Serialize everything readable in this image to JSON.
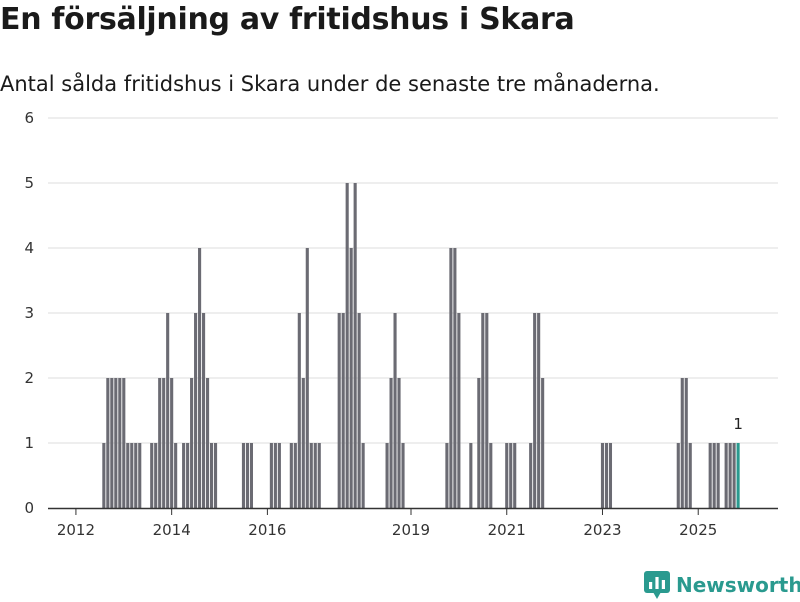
{
  "header": {
    "title": "En försäljning av fritidshus i Skara",
    "subtitle": "Antal sålda fritidshus i Skara under de senaste tre månaderna."
  },
  "brand": {
    "name": "Newsworthy",
    "icon": "bar-chart-icon",
    "color": "#2a9a8f"
  },
  "chart_data": {
    "type": "bar",
    "title": "En försäljning av fritidshus i Skara",
    "subtitle": "Antal sålda fritidshus i Skara under de senaste tre månaderna.",
    "xlabel": "",
    "ylabel": "",
    "ylim": [
      0,
      6
    ],
    "yticks": [
      0,
      1,
      2,
      3,
      4,
      5,
      6
    ],
    "grid": true,
    "frequency": "monthly",
    "xlim": [
      "2011-06",
      "2026-09"
    ],
    "xticks": [
      {
        "label": "2012",
        "month": "2012-01"
      },
      {
        "label": "2014",
        "month": "2014-01"
      },
      {
        "label": "2016",
        "month": "2016-01"
      },
      {
        "label": "2019",
        "month": "2019-01"
      },
      {
        "label": "2021",
        "month": "2021-01"
      },
      {
        "label": "2023",
        "month": "2023-01"
      },
      {
        "label": "2025",
        "month": "2025-01"
      }
    ],
    "colors": {
      "bar": "#6b6b73",
      "highlight": "#2a9a8f",
      "grid": "#dddddd",
      "axis": "#333333"
    },
    "highlight_label": "1",
    "series": [
      {
        "name": "Antal sålda fritidshus",
        "points": [
          [
            "2012-08",
            1
          ],
          [
            "2012-09",
            2
          ],
          [
            "2012-10",
            2
          ],
          [
            "2012-11",
            2
          ],
          [
            "2012-12",
            2
          ],
          [
            "2013-01",
            2
          ],
          [
            "2013-02",
            1
          ],
          [
            "2013-03",
            1
          ],
          [
            "2013-04",
            1
          ],
          [
            "2013-05",
            1
          ],
          [
            "2013-08",
            1
          ],
          [
            "2013-09",
            1
          ],
          [
            "2013-10",
            2
          ],
          [
            "2013-11",
            2
          ],
          [
            "2013-12",
            3
          ],
          [
            "2014-01",
            2
          ],
          [
            "2014-02",
            1
          ],
          [
            "2014-04",
            1
          ],
          [
            "2014-05",
            1
          ],
          [
            "2014-06",
            2
          ],
          [
            "2014-07",
            3
          ],
          [
            "2014-08",
            4
          ],
          [
            "2014-09",
            3
          ],
          [
            "2014-10",
            2
          ],
          [
            "2014-11",
            1
          ],
          [
            "2014-12",
            1
          ],
          [
            "2015-07",
            1
          ],
          [
            "2015-08",
            1
          ],
          [
            "2015-09",
            1
          ],
          [
            "2016-02",
            1
          ],
          [
            "2016-03",
            1
          ],
          [
            "2016-04",
            1
          ],
          [
            "2016-07",
            1
          ],
          [
            "2016-08",
            1
          ],
          [
            "2016-09",
            3
          ],
          [
            "2016-10",
            2
          ],
          [
            "2016-11",
            4
          ],
          [
            "2016-12",
            1
          ],
          [
            "2017-01",
            1
          ],
          [
            "2017-02",
            1
          ],
          [
            "2017-07",
            3
          ],
          [
            "2017-08",
            3
          ],
          [
            "2017-09",
            5
          ],
          [
            "2017-10",
            4
          ],
          [
            "2017-11",
            5
          ],
          [
            "2017-12",
            3
          ],
          [
            "2018-01",
            1
          ],
          [
            "2018-07",
            1
          ],
          [
            "2018-08",
            2
          ],
          [
            "2018-09",
            3
          ],
          [
            "2018-10",
            2
          ],
          [
            "2018-11",
            1
          ],
          [
            "2019-10",
            1
          ],
          [
            "2019-11",
            4
          ],
          [
            "2019-12",
            4
          ],
          [
            "2020-01",
            3
          ],
          [
            "2020-04",
            1
          ],
          [
            "2020-06",
            2
          ],
          [
            "2020-07",
            3
          ],
          [
            "2020-08",
            3
          ],
          [
            "2020-09",
            1
          ],
          [
            "2021-01",
            1
          ],
          [
            "2021-02",
            1
          ],
          [
            "2021-03",
            1
          ],
          [
            "2021-07",
            1
          ],
          [
            "2021-08",
            3
          ],
          [
            "2021-09",
            3
          ],
          [
            "2021-10",
            2
          ],
          [
            "2023-01",
            1
          ],
          [
            "2023-02",
            1
          ],
          [
            "2023-03",
            1
          ],
          [
            "2024-08",
            1
          ],
          [
            "2024-09",
            2
          ],
          [
            "2024-10",
            2
          ],
          [
            "2024-11",
            1
          ],
          [
            "2025-04",
            1
          ],
          [
            "2025-05",
            1
          ],
          [
            "2025-06",
            1
          ],
          [
            "2025-08",
            1
          ],
          [
            "2025-09",
            1
          ],
          [
            "2025-10",
            1
          ]
        ]
      }
    ],
    "highlight_point": [
      "2025-11",
      1
    ]
  }
}
